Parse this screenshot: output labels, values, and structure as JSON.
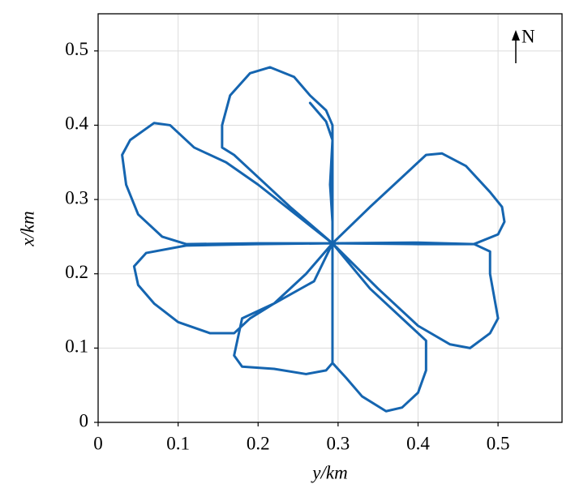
{
  "chart_data": {
    "type": "line",
    "xlabel": "y/km",
    "ylabel": "x/km",
    "annotation": "N",
    "xlim": [
      0,
      0.58
    ],
    "ylim": [
      0,
      0.55
    ],
    "xticks": [
      0,
      0.1,
      0.2,
      0.3,
      0.4,
      0.5
    ],
    "yticks": [
      0,
      0.1,
      0.2,
      0.3,
      0.4,
      0.5
    ],
    "grid": true,
    "series": [
      {
        "color": "#1565b0",
        "x": [
          0.265,
          0.285,
          0.293,
          0.29,
          0.293,
          0.293,
          0.293,
          0.285,
          0.265,
          0.245,
          0.215,
          0.19,
          0.165,
          0.155,
          0.155,
          0.17,
          0.19,
          0.24,
          0.293,
          0.2,
          0.16,
          0.12,
          0.09,
          0.07,
          0.04,
          0.03,
          0.035,
          0.05,
          0.08,
          0.11,
          0.2,
          0.293,
          0.2,
          0.11,
          0.06,
          0.045,
          0.05,
          0.07,
          0.1,
          0.14,
          0.17,
          0.19,
          0.22,
          0.26,
          0.293,
          0.27,
          0.22,
          0.18,
          0.17,
          0.18,
          0.22,
          0.26,
          0.285,
          0.293,
          0.293,
          0.293,
          0.293,
          0.31,
          0.33,
          0.36,
          0.38,
          0.4,
          0.41,
          0.41,
          0.39,
          0.34,
          0.293,
          0.35,
          0.4,
          0.44,
          0.465,
          0.49,
          0.5,
          0.495,
          0.49,
          0.49,
          0.47,
          0.4,
          0.293,
          0.4,
          0.47,
          0.5,
          0.508,
          0.505,
          0.49,
          0.46,
          0.43,
          0.41,
          0.38,
          0.34,
          0.293
        ],
        "values": [
          0.43,
          0.405,
          0.38,
          0.32,
          0.27,
          0.241,
          0.4,
          0.42,
          0.44,
          0.465,
          0.478,
          0.47,
          0.44,
          0.4,
          0.37,
          0.36,
          0.34,
          0.29,
          0.241,
          0.32,
          0.35,
          0.37,
          0.4,
          0.403,
          0.38,
          0.36,
          0.32,
          0.28,
          0.25,
          0.24,
          0.241,
          0.241,
          0.24,
          0.238,
          0.228,
          0.21,
          0.185,
          0.16,
          0.135,
          0.12,
          0.12,
          0.14,
          0.16,
          0.2,
          0.241,
          0.19,
          0.16,
          0.14,
          0.09,
          0.075,
          0.072,
          0.065,
          0.07,
          0.08,
          0.16,
          0.241,
          0.08,
          0.06,
          0.035,
          0.015,
          0.02,
          0.04,
          0.07,
          0.11,
          0.13,
          0.18,
          0.241,
          0.18,
          0.13,
          0.105,
          0.1,
          0.12,
          0.14,
          0.17,
          0.2,
          0.23,
          0.24,
          0.242,
          0.241,
          0.24,
          0.24,
          0.253,
          0.27,
          0.29,
          0.31,
          0.345,
          0.362,
          0.36,
          0.33,
          0.29,
          0.241
        ]
      }
    ]
  }
}
